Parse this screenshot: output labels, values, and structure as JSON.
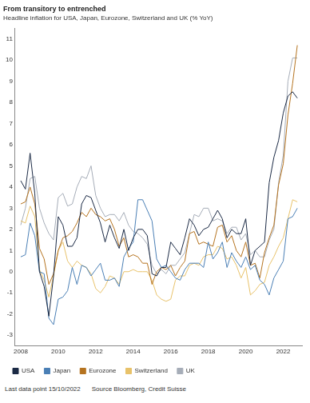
{
  "chart_data": {
    "type": "line",
    "title": "From transitory to entrenched",
    "subtitle": "Headline inflation for USA, Japan, Eurozone, Switzerland and UK (% YoY)",
    "annotations": [
      "Last data point 15/10/2022",
      "Source Bloomberg, Credit Suisse"
    ],
    "x": [
      2008,
      2008.25,
      2008.5,
      2008.75,
      2009,
      2009.25,
      2009.5,
      2009.75,
      2010,
      2010.25,
      2010.5,
      2010.75,
      2011,
      2011.25,
      2011.5,
      2011.75,
      2012,
      2012.25,
      2012.5,
      2012.75,
      2013,
      2013.25,
      2013.5,
      2013.75,
      2014,
      2014.25,
      2014.5,
      2014.75,
      2015,
      2015.25,
      2015.5,
      2015.75,
      2016,
      2016.25,
      2016.5,
      2016.75,
      2017,
      2017.25,
      2017.5,
      2017.75,
      2018,
      2018.25,
      2018.5,
      2018.75,
      2019,
      2019.25,
      2019.5,
      2019.75,
      2020,
      2020.25,
      2020.5,
      2020.75,
      2021,
      2021.25,
      2021.5,
      2021.75,
      2022,
      2022.25,
      2022.5,
      2022.75
    ],
    "series": [
      {
        "name": "USA",
        "color": "#1b2a45",
        "values": [
          4.3,
          3.9,
          5.6,
          3.7,
          0.0,
          -0.7,
          -2.1,
          -0.2,
          2.6,
          2.2,
          1.2,
          1.2,
          1.6,
          3.2,
          3.6,
          3.5,
          2.9,
          2.3,
          1.4,
          2.2,
          1.6,
          1.1,
          2.0,
          1.0,
          1.6,
          2.0,
          2.0,
          1.7,
          -0.1,
          -0.2,
          0.2,
          0.2,
          1.4,
          1.1,
          0.8,
          1.6,
          2.5,
          2.2,
          1.7,
          2.0,
          2.1,
          2.5,
          2.9,
          2.5,
          1.6,
          2.0,
          1.8,
          1.8,
          2.5,
          0.3,
          1.0,
          1.2,
          1.4,
          4.2,
          5.4,
          6.2,
          7.5,
          8.3,
          8.5,
          8.2
        ]
      },
      {
        "name": "Japan",
        "color": "#4a7fb5",
        "values": [
          0.7,
          0.8,
          2.3,
          1.7,
          0.0,
          -0.1,
          -2.2,
          -2.5,
          -1.3,
          -1.2,
          -0.9,
          0.2,
          -0.6,
          0.3,
          0.2,
          -0.2,
          0.1,
          0.4,
          -0.4,
          -0.4,
          -0.3,
          -0.7,
          0.7,
          1.1,
          1.4,
          3.4,
          3.4,
          2.9,
          2.4,
          0.6,
          0.2,
          0.3,
          0.0,
          -0.3,
          -0.4,
          0.1,
          0.4,
          0.4,
          0.4,
          0.2,
          1.4,
          0.6,
          0.9,
          1.4,
          0.2,
          0.9,
          0.5,
          0.2,
          0.7,
          0.1,
          0.3,
          -0.4,
          -0.6,
          -1.1,
          -0.3,
          0.1,
          0.5,
          2.5,
          2.6,
          3.0
        ]
      },
      {
        "name": "Eurozone",
        "color": "#b5731f",
        "values": [
          3.2,
          3.3,
          4.0,
          3.2,
          1.1,
          0.6,
          -0.6,
          -0.1,
          1.0,
          1.6,
          1.7,
          1.9,
          2.3,
          2.8,
          2.6,
          3.0,
          2.7,
          2.6,
          2.4,
          2.5,
          2.0,
          1.2,
          1.6,
          0.7,
          0.8,
          0.7,
          0.4,
          0.4,
          -0.6,
          0.0,
          0.2,
          0.1,
          0.3,
          -0.2,
          0.2,
          0.5,
          1.8,
          1.9,
          1.3,
          1.4,
          1.3,
          1.2,
          2.1,
          2.2,
          1.4,
          1.7,
          1.0,
          0.7,
          1.4,
          0.3,
          0.4,
          -0.3,
          0.9,
          1.6,
          2.2,
          4.1,
          5.1,
          7.4,
          8.9,
          10.7
        ]
      },
      {
        "name": "Switzerland",
        "color": "#e8c26a",
        "values": [
          2.4,
          2.3,
          3.1,
          2.6,
          0.1,
          -0.4,
          -1.2,
          -0.2,
          1.0,
          1.4,
          0.5,
          0.2,
          0.5,
          0.3,
          0.2,
          -0.1,
          -0.8,
          -1.0,
          -0.7,
          -0.2,
          -0.3,
          -0.6,
          0.0,
          0.0,
          0.1,
          0.0,
          0.0,
          0.0,
          -0.4,
          -1.1,
          -1.3,
          -1.4,
          -1.3,
          -0.4,
          -0.2,
          -0.2,
          0.3,
          0.4,
          0.3,
          0.7,
          0.8,
          0.8,
          1.2,
          1.1,
          0.6,
          0.7,
          0.3,
          -0.3,
          0.2,
          -1.1,
          -0.9,
          -0.6,
          -0.5,
          0.3,
          0.7,
          1.2,
          1.6,
          2.5,
          3.4,
          3.3
        ]
      },
      {
        "name": "UK",
        "color": "#a6adb8",
        "values": [
          2.2,
          3.0,
          4.4,
          4.5,
          3.0,
          2.3,
          1.8,
          1.5,
          3.5,
          3.7,
          3.1,
          3.2,
          4.0,
          4.5,
          4.4,
          5.0,
          3.6,
          3.0,
          2.6,
          2.7,
          2.7,
          2.4,
          2.8,
          2.2,
          1.9,
          1.8,
          1.6,
          1.3,
          0.3,
          -0.1,
          0.1,
          -0.1,
          0.3,
          0.3,
          0.6,
          0.9,
          1.8,
          2.7,
          2.6,
          3.0,
          3.0,
          2.4,
          2.5,
          2.4,
          1.8,
          2.1,
          2.1,
          1.5,
          1.8,
          0.8,
          1.0,
          0.7,
          0.7,
          1.5,
          2.0,
          4.2,
          5.5,
          9.0,
          10.1,
          10.1
        ]
      }
    ],
    "xlim": [
      2007.7,
      2023
    ],
    "xticks": [
      2008,
      2010,
      2012,
      2014,
      2016,
      2018,
      2020,
      2022
    ],
    "ylim": [
      -3.5,
      11.5
    ],
    "yticks": [
      -3,
      -2,
      -1,
      0,
      1,
      2,
      3,
      4,
      5,
      6,
      7,
      8,
      9,
      10,
      11
    ],
    "grid": false,
    "legend": "bottom"
  }
}
